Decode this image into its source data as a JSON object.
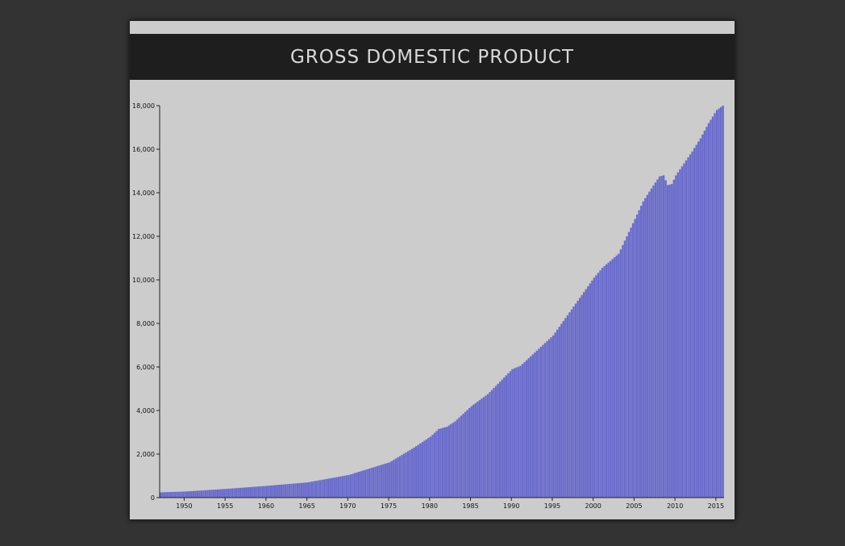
{
  "header": {
    "title": "GROSS DOMESTIC PRODUCT"
  },
  "colors": {
    "page_background": "#333333",
    "card_background": "#cccccc",
    "title_bar": "#1e1e1e",
    "title_text": "#d9d9d9",
    "bar_fill": "#6a6ccc",
    "axis": "#222222"
  },
  "chart_data": {
    "type": "bar",
    "title": "GROSS DOMESTIC PRODUCT",
    "xlabel": "",
    "ylabel": "",
    "xlim": [
      1947.0,
      2016.0
    ],
    "ylim": [
      0,
      18000
    ],
    "grid": false,
    "legend": "none",
    "x_ticks": [
      1950,
      1955,
      1960,
      1965,
      1970,
      1975,
      1980,
      1985,
      1990,
      1995,
      2000,
      2005,
      2010,
      2015
    ],
    "y_ticks": [
      0,
      2000,
      4000,
      6000,
      8000,
      10000,
      12000,
      14000,
      16000,
      18000
    ],
    "x_tick_labels": [
      "1950",
      "1955",
      "1960",
      "1965",
      "1970",
      "1975",
      "1980",
      "1985",
      "1990",
      "1995",
      "2000",
      "2005",
      "2010",
      "2015"
    ],
    "y_tick_labels": [
      "0",
      "2,000",
      "4,000",
      "6,000",
      "8,000",
      "10,000",
      "12,000",
      "14,000",
      "16,000",
      "18,000"
    ],
    "frequency": "quarterly",
    "anchors": [
      [
        1947.0,
        243
      ],
      [
        1950.0,
        280
      ],
      [
        1955.0,
        400
      ],
      [
        1960.0,
        540
      ],
      [
        1965.0,
        700
      ],
      [
        1970.0,
        1040
      ],
      [
        1975.0,
        1620
      ],
      [
        1978.0,
        2300
      ],
      [
        1980.0,
        2800
      ],
      [
        1981.0,
        3150
      ],
      [
        1982.0,
        3250
      ],
      [
        1983.0,
        3500
      ],
      [
        1985.0,
        4200
      ],
      [
        1987.0,
        4750
      ],
      [
        1990.0,
        5900
      ],
      [
        1991.0,
        6050
      ],
      [
        1995.0,
        7450
      ],
      [
        2000.0,
        10100
      ],
      [
        2001.0,
        10550
      ],
      [
        2003.0,
        11200
      ],
      [
        2005.0,
        12800
      ],
      [
        2006.0,
        13600
      ],
      [
        2007.0,
        14200
      ],
      [
        2008.0,
        14750
      ],
      [
        2008.5,
        14800
      ],
      [
        2009.0,
        14350
      ],
      [
        2009.5,
        14400
      ],
      [
        2010.0,
        14800
      ],
      [
        2012.0,
        15900
      ],
      [
        2013.0,
        16500
      ],
      [
        2014.0,
        17200
      ],
      [
        2015.0,
        17800
      ],
      [
        2015.75,
        18000
      ]
    ]
  }
}
